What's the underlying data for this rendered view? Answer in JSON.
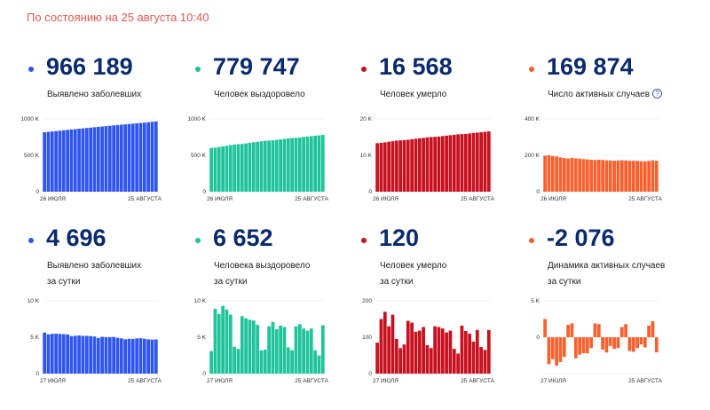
{
  "status_text": "По состоянию на 25 августа 10:40",
  "help_icon": "?",
  "cards": [
    {
      "value": "966 189",
      "label1": "Выявлено заболевших",
      "label2": "",
      "color": "#2e55e6",
      "help": false
    },
    {
      "value": "779 747",
      "label1": "Человек выздоровело",
      "label2": "",
      "color": "#1fbf97",
      "help": false
    },
    {
      "value": "16 568",
      "label1": "Человек умерло",
      "label2": "",
      "color": "#c8101e",
      "help": false
    },
    {
      "value": "169 874",
      "label1": "Число активных случаев",
      "label2": "",
      "color": "#f8612f",
      "help": true
    },
    {
      "value": "4 696",
      "label1": "Выявлено заболевших",
      "label2": "за сутки",
      "color": "#2e55e6",
      "help": false
    },
    {
      "value": "6 652",
      "label1": "Человека выздоровело",
      "label2": "за сутки",
      "color": "#1fbf97",
      "help": false
    },
    {
      "value": "120",
      "label1": "Человек умерло",
      "label2": "за сутки",
      "color": "#c8101e",
      "help": false
    },
    {
      "value": "-2 076",
      "label1": "Динамика активных случаев",
      "label2": "за сутки",
      "color": "#f8612f",
      "help": false
    }
  ],
  "chart_data": [
    {
      "type": "bar",
      "title": "Выявлено заболевших",
      "color": "#2f55f0",
      "x_start_label": "26 ИЮЛЯ",
      "x_end_label": "25 АВГУСТА",
      "ylim": [
        0,
        1000000
      ],
      "yticks": [
        0,
        500000,
        1000000
      ],
      "ytick_labels": [
        "0",
        "500 K",
        "1000 K"
      ],
      "values": [
        816680,
        822060,
        827509,
        832993,
        838461,
        843890,
        849277,
        854641,
        859762,
        864948,
        870187,
        875378,
        880563,
        885718,
        890799,
        895691,
        900745,
        905762,
        910778,
        915808,
        920719,
        925558,
        930276,
        935066,
        939833,
        944671,
        949531,
        954328,
        961493,
        966189
      ]
    },
    {
      "type": "bar",
      "title": "Человек выздоровело",
      "color": "#1fc49a",
      "x_start_label": "26 ИЮЛЯ",
      "x_end_label": "25 АВГУСТА",
      "ylim": [
        0,
        1000000
      ],
      "yticks": [
        0,
        500000,
        1000000
      ],
      "ytick_labels": [
        "0",
        "500 K",
        "1000 K"
      ],
      "values": [
        602000,
        605000,
        614000,
        622000,
        632000,
        640000,
        648000,
        652000,
        656000,
        664000,
        671000,
        679000,
        686000,
        693000,
        699000,
        702000,
        705000,
        712000,
        719000,
        725000,
        731000,
        737000,
        741000,
        744000,
        751000,
        758000,
        764000,
        770000,
        773000,
        779747
      ]
    },
    {
      "type": "bar",
      "title": "Человек умерло",
      "color": "#c8101e",
      "x_start_label": "26 ИЮЛЯ",
      "x_end_label": "25 АВГУСТА",
      "ylim": [
        0,
        20000
      ],
      "yticks": [
        0,
        10000,
        20000
      ],
      "ytick_labels": [
        "0",
        "10 K",
        "20 K"
      ],
      "values": [
        13334,
        13419,
        13569,
        13739,
        13866,
        14027,
        14120,
        14190,
        14270,
        14413,
        14554,
        14672,
        14787,
        14925,
        15000,
        15078,
        15146,
        15275,
        15402,
        15525,
        15638,
        15752,
        15818,
        15872,
        16008,
        16124,
        16233,
        16319,
        16448,
        16568
      ]
    },
    {
      "type": "bar",
      "title": "Число активных случаев",
      "color": "#f8612f",
      "x_start_label": "26 ИЮЛЯ",
      "x_end_label": "25 АВГУСТА",
      "ylim": [
        0,
        400000
      ],
      "yticks": [
        0,
        200000,
        400000
      ],
      "ytick_labels": [
        "0",
        "200 K",
        "400 K"
      ],
      "values": [
        198000,
        200500,
        196000,
        193500,
        188500,
        185000,
        182500,
        186000,
        183500,
        181500,
        179000,
        177500,
        175500,
        174500,
        176000,
        174000,
        172500,
        171500,
        170500,
        171500,
        173000,
        172000,
        170500,
        170000,
        169500,
        168000,
        167500,
        169000,
        172000,
        169874
      ]
    },
    {
      "type": "bar",
      "title": "Выявлено заболевших за сутки",
      "color": "#2f55f0",
      "x_start_label": "27 ИЮЛЯ",
      "x_end_label": "25 АВГУСТА",
      "ylim": [
        0,
        10000
      ],
      "yticks": [
        0,
        5000,
        10000
      ],
      "ytick_labels": [
        "0",
        "5 K",
        "10 K"
      ],
      "values": [
        5635,
        5395,
        5462,
        5482,
        5466,
        5427,
        5387,
        5159,
        5203,
        5241,
        5189,
        5185,
        5153,
        5102,
        4892,
        5056,
        5010,
        5010,
        5036,
        4917,
        4839,
        4718,
        4790,
        4767,
        4838,
        4860,
        4797,
        4713,
        4676,
        4696
      ]
    },
    {
      "type": "bar",
      "title": "Человека выздоровело за сутки",
      "color": "#1fc49a",
      "x_start_label": "27 ИЮЛЯ",
      "x_end_label": "25 АВГУСТА",
      "ylim": [
        0,
        10000
      ],
      "yticks": [
        0,
        5000,
        10000
      ],
      "ytick_labels": [
        "0",
        "5 K",
        "10 K"
      ],
      "values": [
        3100,
        8900,
        8200,
        9300,
        8800,
        8100,
        3700,
        3400,
        7900,
        7600,
        7400,
        7300,
        6700,
        3200,
        3300,
        6500,
        7100,
        6100,
        6600,
        6400,
        3600,
        3200,
        6500,
        6800,
        6200,
        5900,
        6200,
        3200,
        2500,
        6652
      ]
    },
    {
      "type": "bar",
      "title": "Человек умерло за сутки",
      "color": "#c8101e",
      "x_start_label": "27 ИЮЛЯ",
      "x_end_label": "25 АВГУСТА",
      "ylim": [
        0,
        200
      ],
      "yticks": [
        0,
        100,
        200
      ],
      "ytick_labels": [
        "0",
        "100",
        "200"
      ],
      "values": [
        85,
        150,
        170,
        130,
        162,
        95,
        70,
        80,
        145,
        140,
        115,
        118,
        128,
        78,
        70,
        130,
        128,
        124,
        113,
        118,
        68,
        55,
        132,
        117,
        110,
        88,
        120,
        73,
        65,
        120
      ]
    },
    {
      "type": "bar",
      "title": "Динамика активных случаев за сутки",
      "color": "#f8612f",
      "x_start_label": "27 ИЮЛЯ",
      "x_end_label": "25 АВГУСТА",
      "ylim": [
        -5000,
        5000
      ],
      "yticks": [
        0,
        5000
      ],
      "ytick_labels": [
        "0",
        "5 K"
      ],
      "values": [
        2500,
        -3700,
        -3000,
        -3900,
        -3400,
        -2700,
        1700,
        1900,
        -2900,
        -2400,
        -2200,
        -2200,
        -1500,
        1900,
        1800,
        -1700,
        -2100,
        -1200,
        -1600,
        -1500,
        1400,
        1800,
        -1900,
        -2000,
        -1500,
        -1000,
        -1400,
        1600,
        2200,
        -2076
      ]
    }
  ]
}
